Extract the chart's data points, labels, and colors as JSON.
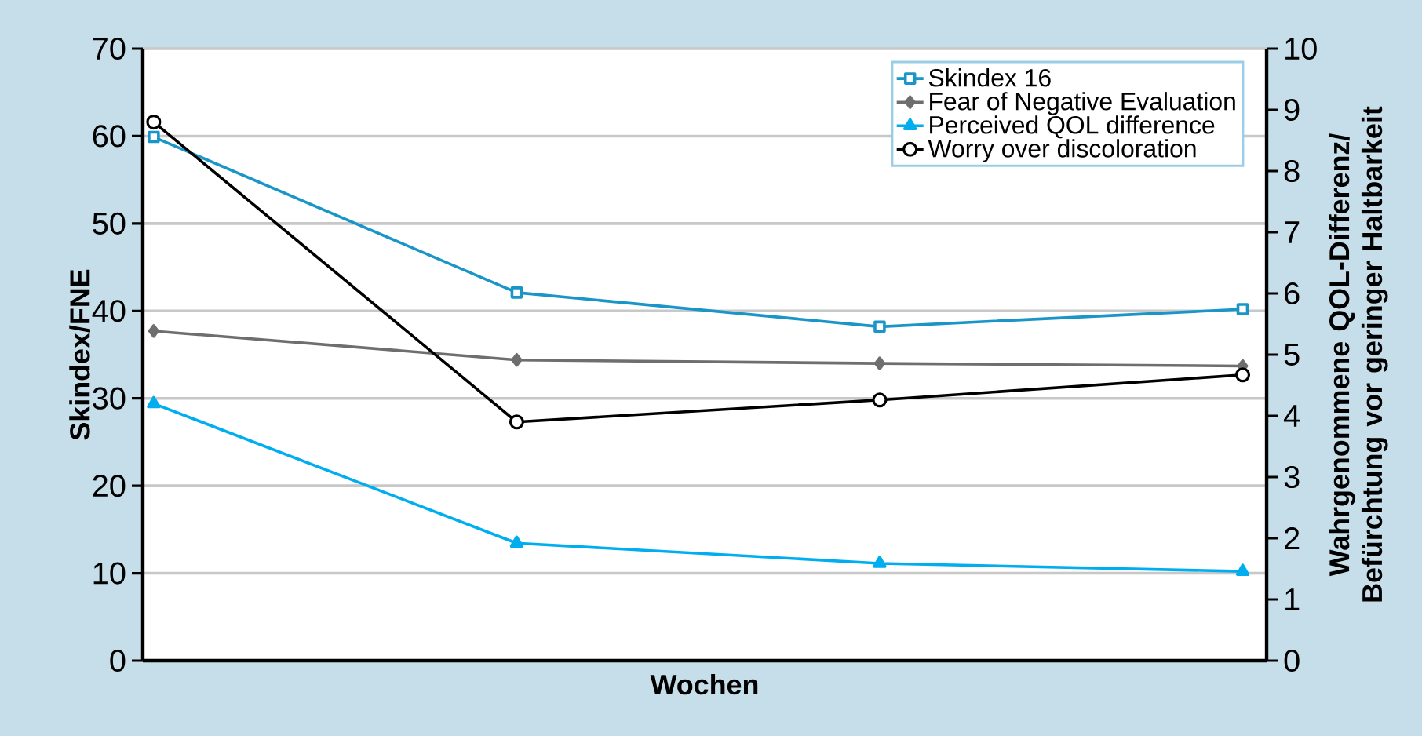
{
  "chart_data": {
    "type": "line",
    "xlabel": "Wochen",
    "ylabel": "Skindex/FNE",
    "y2label": "Wahrgenommene QOL-Differenz/ Befürchtung vor geringer Haltbarkeit",
    "categories": [
      null,
      null,
      null,
      null
    ],
    "ylim": [
      0,
      70
    ],
    "yticks": [
      0,
      10,
      20,
      30,
      40,
      50,
      60,
      70
    ],
    "y2lim": [
      0,
      10
    ],
    "y2ticks": [
      0,
      1,
      2,
      3,
      4,
      5,
      6,
      7,
      8,
      9,
      10
    ],
    "grid": "y",
    "legend": "top right",
    "line_style": "solid",
    "series": [
      {
        "name": "Skindex 16",
        "color": "#1a95c8",
        "marker": "square",
        "values": [
          59.9,
          42.1,
          38.2,
          40.2
        ]
      },
      {
        "name": "Fear of Negative Evaluation",
        "color": "#6e6e6e",
        "marker": "diamond",
        "values": [
          37.7,
          34.4,
          34.0,
          33.7
        ]
      },
      {
        "name": "Perceived QOL difference",
        "color": "#00aeef",
        "marker": "triangle",
        "axis": "y2",
        "values": [
          4.2,
          1.92,
          1.59,
          1.46
        ]
      },
      {
        "name": "Worry over discoloration",
        "color": "#000000",
        "marker": "circle",
        "axis": "y2",
        "values": [
          8.8,
          3.9,
          4.26,
          4.67
        ]
      }
    ]
  }
}
